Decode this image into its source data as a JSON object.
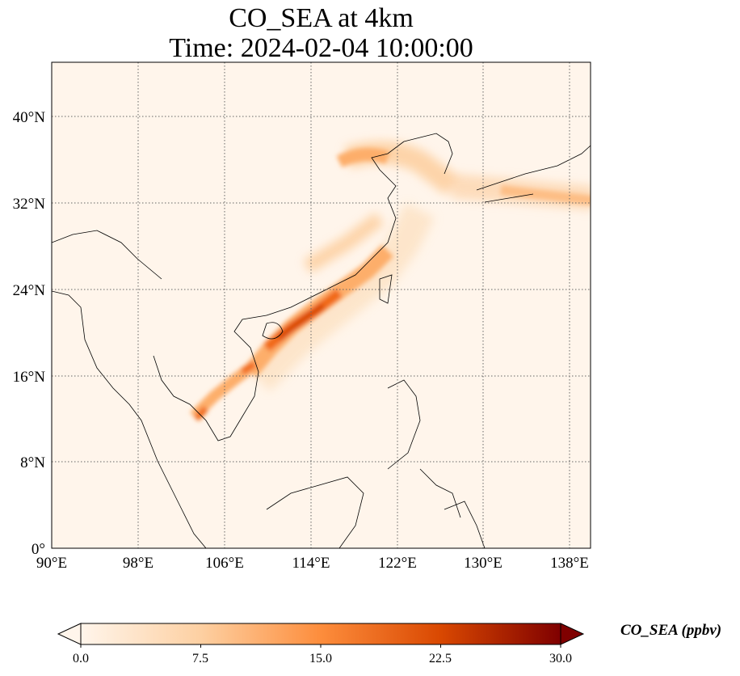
{
  "title": {
    "line1": "CO_SEA at 4km",
    "line2": "Time: 2024-02-04 10:00:00"
  },
  "map": {
    "extent": {
      "lon": [
        90,
        140
      ],
      "lat": [
        0,
        45
      ]
    },
    "lat_ticks": [
      "40°N",
      "32°N",
      "24°N",
      "16°N",
      "8°N",
      "0°"
    ],
    "lon_ticks": [
      "90°E",
      "98°E",
      "106°E",
      "114°E",
      "122°E",
      "130°E",
      "138°E"
    ],
    "gridlines": "dotted",
    "background_color": "#fff5eb"
  },
  "colorbar": {
    "label": "CO_SEA (ppbv)",
    "ticks": [
      "0.0",
      "7.5",
      "15.0",
      "22.5",
      "30.0"
    ],
    "colors": [
      "#fff5eb",
      "#fdd0a2",
      "#fd8d3c",
      "#d94801",
      "#7f0000"
    ],
    "extend": "both"
  }
}
